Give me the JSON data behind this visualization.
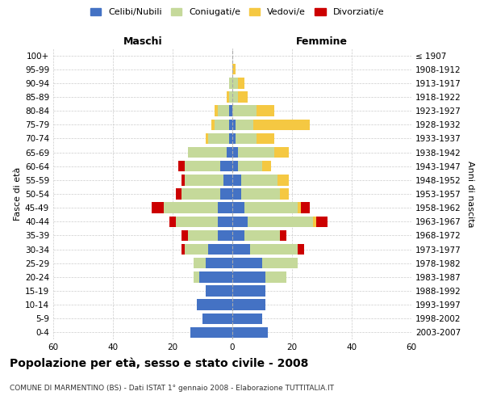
{
  "age_groups": [
    "0-4",
    "5-9",
    "10-14",
    "15-19",
    "20-24",
    "25-29",
    "30-34",
    "35-39",
    "40-44",
    "45-49",
    "50-54",
    "55-59",
    "60-64",
    "65-69",
    "70-74",
    "75-79",
    "80-84",
    "85-89",
    "90-94",
    "95-99",
    "100+"
  ],
  "birth_years": [
    "2003-2007",
    "1998-2002",
    "1993-1997",
    "1988-1992",
    "1983-1987",
    "1978-1982",
    "1973-1977",
    "1968-1972",
    "1963-1967",
    "1958-1962",
    "1953-1957",
    "1948-1952",
    "1943-1947",
    "1938-1942",
    "1933-1937",
    "1928-1932",
    "1923-1927",
    "1918-1922",
    "1913-1917",
    "1908-1912",
    "≤ 1907"
  ],
  "male": {
    "celibe": [
      14,
      10,
      12,
      9,
      11,
      9,
      8,
      5,
      5,
      5,
      4,
      3,
      4,
      2,
      1,
      1,
      1,
      0,
      0,
      0,
      0
    ],
    "coniugato": [
      0,
      0,
      0,
      0,
      2,
      4,
      8,
      10,
      14,
      18,
      13,
      13,
      12,
      13,
      7,
      5,
      4,
      1,
      1,
      0,
      0
    ],
    "vedovo": [
      0,
      0,
      0,
      0,
      0,
      0,
      0,
      0,
      0,
      0,
      0,
      0,
      0,
      0,
      1,
      1,
      1,
      1,
      0,
      0,
      0
    ],
    "divorziato": [
      0,
      0,
      0,
      0,
      0,
      0,
      1,
      2,
      2,
      4,
      2,
      1,
      2,
      0,
      0,
      0,
      0,
      0,
      0,
      0,
      0
    ]
  },
  "female": {
    "nubile": [
      12,
      10,
      11,
      11,
      11,
      10,
      6,
      4,
      5,
      4,
      3,
      3,
      2,
      2,
      1,
      1,
      0,
      0,
      0,
      0,
      0
    ],
    "coniugata": [
      0,
      0,
      0,
      0,
      7,
      12,
      16,
      12,
      22,
      18,
      13,
      12,
      8,
      12,
      7,
      6,
      8,
      2,
      2,
      0,
      0
    ],
    "vedova": [
      0,
      0,
      0,
      0,
      0,
      0,
      0,
      0,
      1,
      1,
      3,
      4,
      3,
      5,
      6,
      19,
      6,
      3,
      2,
      1,
      0
    ],
    "divorziata": [
      0,
      0,
      0,
      0,
      0,
      0,
      2,
      2,
      4,
      3,
      0,
      0,
      0,
      0,
      0,
      0,
      0,
      0,
      0,
      0,
      0
    ]
  },
  "colors": {
    "celibe_nubile": "#4472C4",
    "coniugato_a": "#C5D99A",
    "vedovo_a": "#F5C842",
    "divorziato_a": "#CC0000"
  },
  "xlim": 60,
  "title": "Popolazione per età, sesso e stato civile - 2008",
  "subtitle": "COMUNE DI MARMENTINO (BS) - Dati ISTAT 1° gennaio 2008 - Elaborazione TUTTITALIA.IT",
  "ylabel_left": "Fasce di età",
  "ylabel_right": "Anni di nascita",
  "xlabel_left": "Maschi",
  "xlabel_right": "Femmine",
  "legend_labels": [
    "Celibi/Nubili",
    "Coniugati/e",
    "Vedovi/e",
    "Divorziati/e"
  ],
  "background_color": "#FFFFFF",
  "grid_color": "#CCCCCC"
}
